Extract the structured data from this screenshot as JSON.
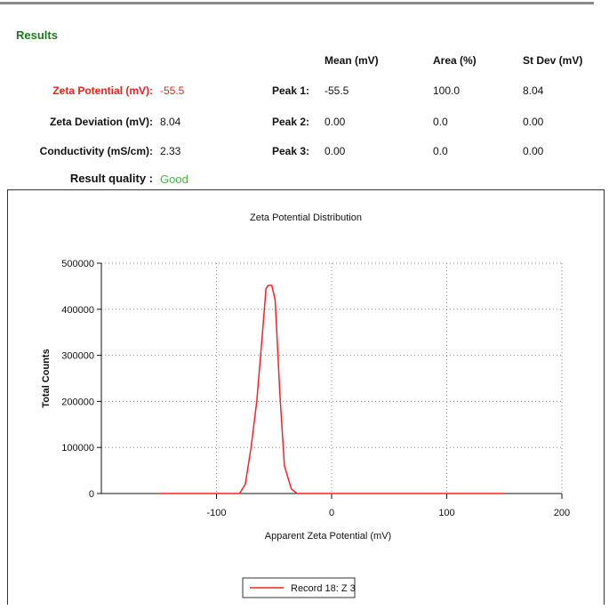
{
  "results": {
    "title": "Results",
    "headers": [
      "Mean (mV)",
      "Area (%)",
      "St Dev (mV)"
    ],
    "rows": [
      [
        "Zeta Potential (mV):",
        "-55.5",
        "Peak 1:",
        "-55.5",
        "100.0",
        "8.04"
      ],
      [
        "Zeta Deviation (mV):",
        "8.04",
        "Peak 2:",
        "0.00",
        "0.0",
        "0.00"
      ],
      [
        "Conductivity (mS/cm):",
        "2.33",
        "Peak 3:",
        "0.00",
        "0.0",
        "0.00"
      ]
    ],
    "quality_label": "Result quality :",
    "quality_value": "Good"
  },
  "chart_data": {
    "type": "line",
    "title": "Zeta Potential Distribution",
    "x_label": "Apparent Zeta Potential (mV)",
    "y_label": "Total Counts",
    "xlim": [
      -200,
      200
    ],
    "xticks": [
      -100,
      0,
      100,
      200
    ],
    "ylim": [
      0,
      500000
    ],
    "yticks": [
      0,
      100000,
      200000,
      300000,
      400000,
      500000
    ],
    "grid": true,
    "legend": "bottom",
    "series": [
      {
        "name": "Record 18: Z 3",
        "color": "#ff2020",
        "x": [
          -150,
          -80,
          -75,
          -70,
          -65,
          -60,
          -57,
          -55,
          -52,
          -49,
          -45,
          -41,
          -35,
          -30,
          150
        ],
        "values": [
          0,
          0,
          20000,
          100000,
          200000,
          350000,
          445000,
          452000,
          452000,
          420000,
          220000,
          60000,
          10000,
          0,
          0
        ]
      }
    ]
  }
}
